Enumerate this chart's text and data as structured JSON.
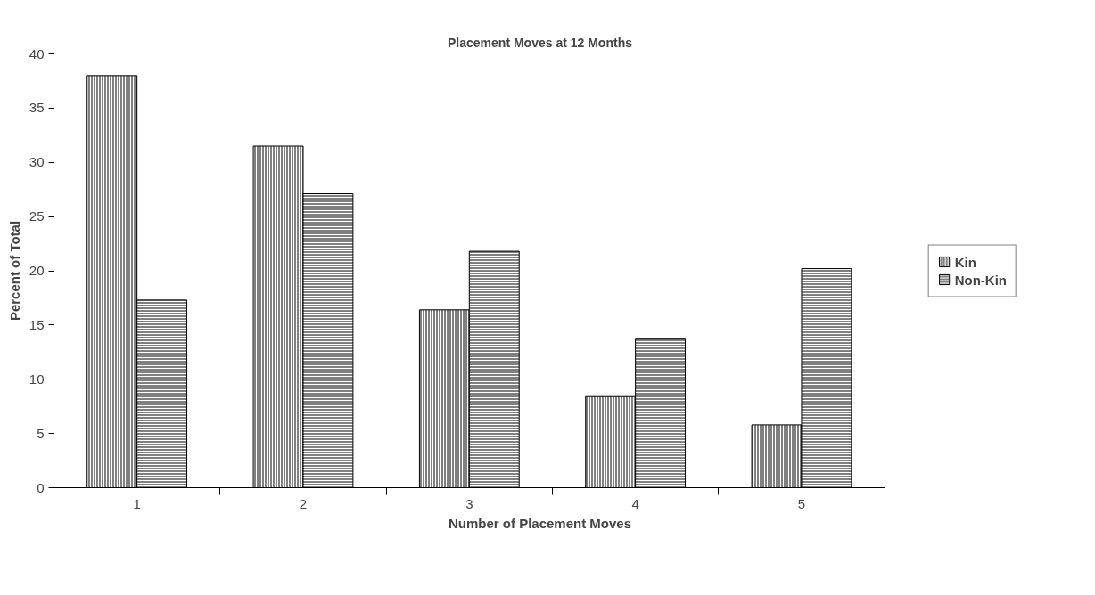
{
  "chart_data": {
    "type": "bar",
    "title": "Placement Moves at 12 Months",
    "xlabel": "Number of Placement Moves",
    "ylabel": "Percent of Total",
    "categories": [
      "1",
      "2",
      "3",
      "4",
      "5"
    ],
    "series": [
      {
        "name": "Kin",
        "color": "#808080",
        "values": [
          38.0,
          31.5,
          16.4,
          8.4,
          5.8
        ]
      },
      {
        "name": "Non-Kin",
        "color": "#808080",
        "values": [
          17.3,
          27.1,
          21.8,
          13.7,
          20.2
        ]
      }
    ],
    "ylim": [
      0,
      40
    ],
    "yticks": [
      0,
      5,
      10,
      15,
      20,
      25,
      30,
      35,
      40
    ],
    "grid": false,
    "legend": "right"
  }
}
